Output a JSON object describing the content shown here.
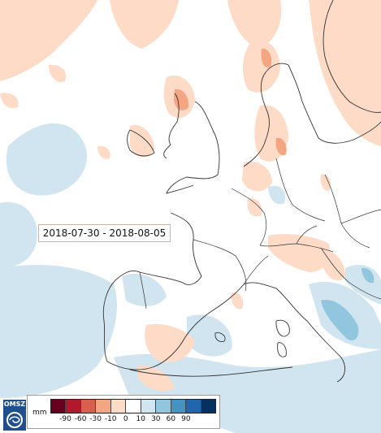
{
  "map": {
    "date_range": "2018-07-30 - 2018-08-05",
    "logo_text": "OMSZ",
    "legend": {
      "unit": "mm",
      "colors": [
        "#67001f",
        "#b2182b",
        "#d6604d",
        "#f4a582",
        "#fddbc7",
        "#ffffff",
        "#d1e5f0",
        "#92c5de",
        "#4393c3",
        "#2166ac",
        "#053061"
      ],
      "labels": [
        "-90",
        "-60",
        "-30",
        "-10",
        "0",
        "10",
        "30",
        "60",
        "90"
      ]
    }
  }
}
